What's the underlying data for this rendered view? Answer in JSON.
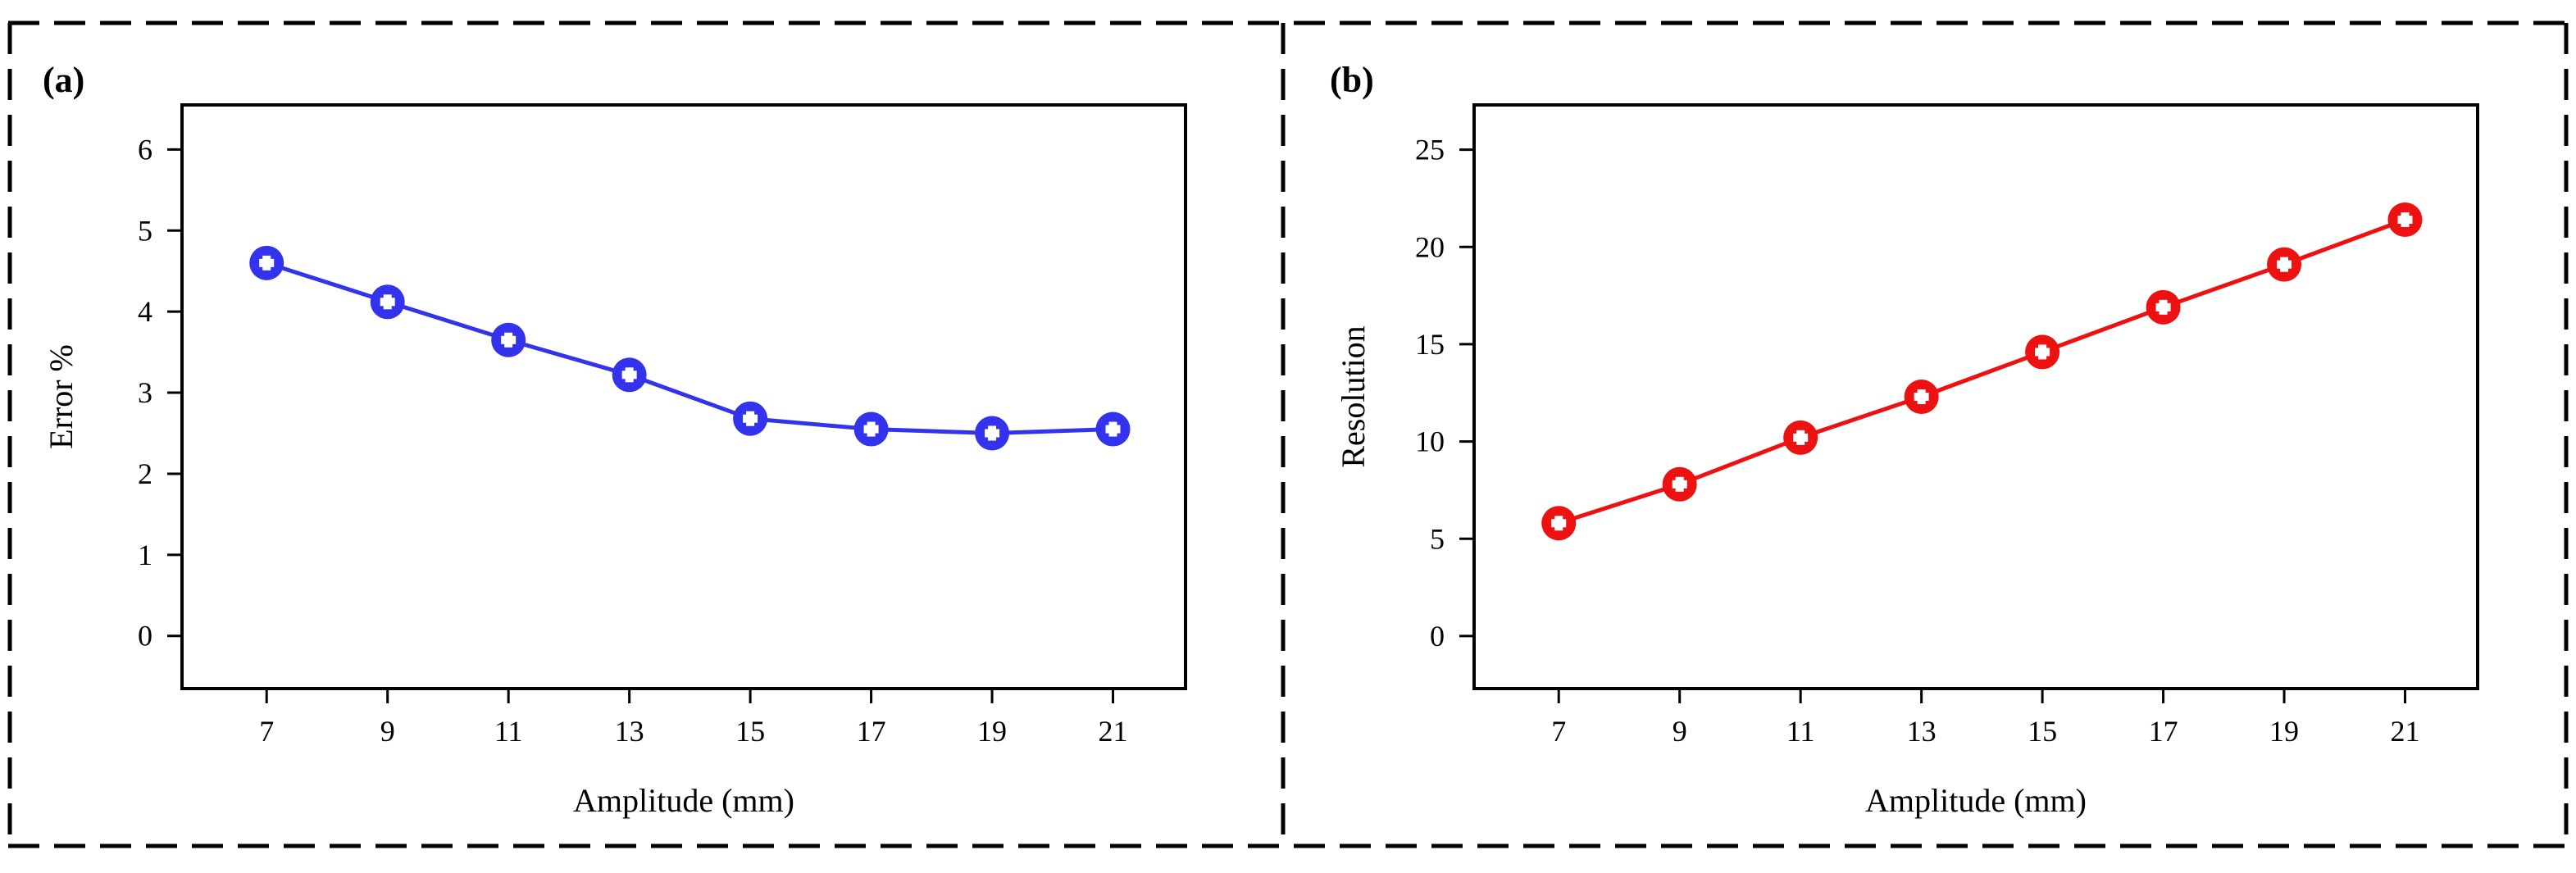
{
  "figure": {
    "background": "#ffffff",
    "border_style": "dashed"
  },
  "chart_data": [
    {
      "type": "line",
      "panel_label": "(a)",
      "title": "",
      "xlabel": "Amplitude (mm)",
      "ylabel": "Error %",
      "x": [
        7,
        9,
        11,
        13,
        15,
        17,
        19,
        21
      ],
      "series": [
        {
          "values": [
            4.6,
            4.12,
            3.65,
            3.22,
            2.68,
            2.55,
            2.5,
            2.55
          ],
          "color": "#3333ee",
          "marker": "circle"
        }
      ],
      "xticks": [
        "7",
        "9",
        "11",
        "13",
        "15",
        "17",
        "19",
        "21"
      ],
      "yticks": [
        "0",
        "1",
        "2",
        "3",
        "4",
        "5",
        "6"
      ],
      "xlim": [
        5.6,
        22.2
      ],
      "ylim": [
        -0.65,
        6.55
      ],
      "grid": false,
      "legend": "none"
    },
    {
      "type": "line",
      "panel_label": "(b)",
      "title": "",
      "xlabel": "Amplitude (mm)",
      "ylabel": "Resolution",
      "x": [
        7,
        9,
        11,
        13,
        15,
        17,
        19,
        21
      ],
      "series": [
        {
          "values": [
            5.8,
            7.8,
            10.2,
            12.3,
            14.6,
            16.9,
            19.1,
            21.4
          ],
          "color": "#ee1111",
          "marker": "circle"
        }
      ],
      "xticks": [
        "7",
        "9",
        "11",
        "13",
        "15",
        "17",
        "19",
        "21"
      ],
      "yticks": [
        "0",
        "5",
        "10",
        "15",
        "20",
        "25"
      ],
      "xlim": [
        5.6,
        22.2
      ],
      "ylim": [
        -2.7,
        27.3
      ],
      "grid": false,
      "legend": "none"
    }
  ]
}
